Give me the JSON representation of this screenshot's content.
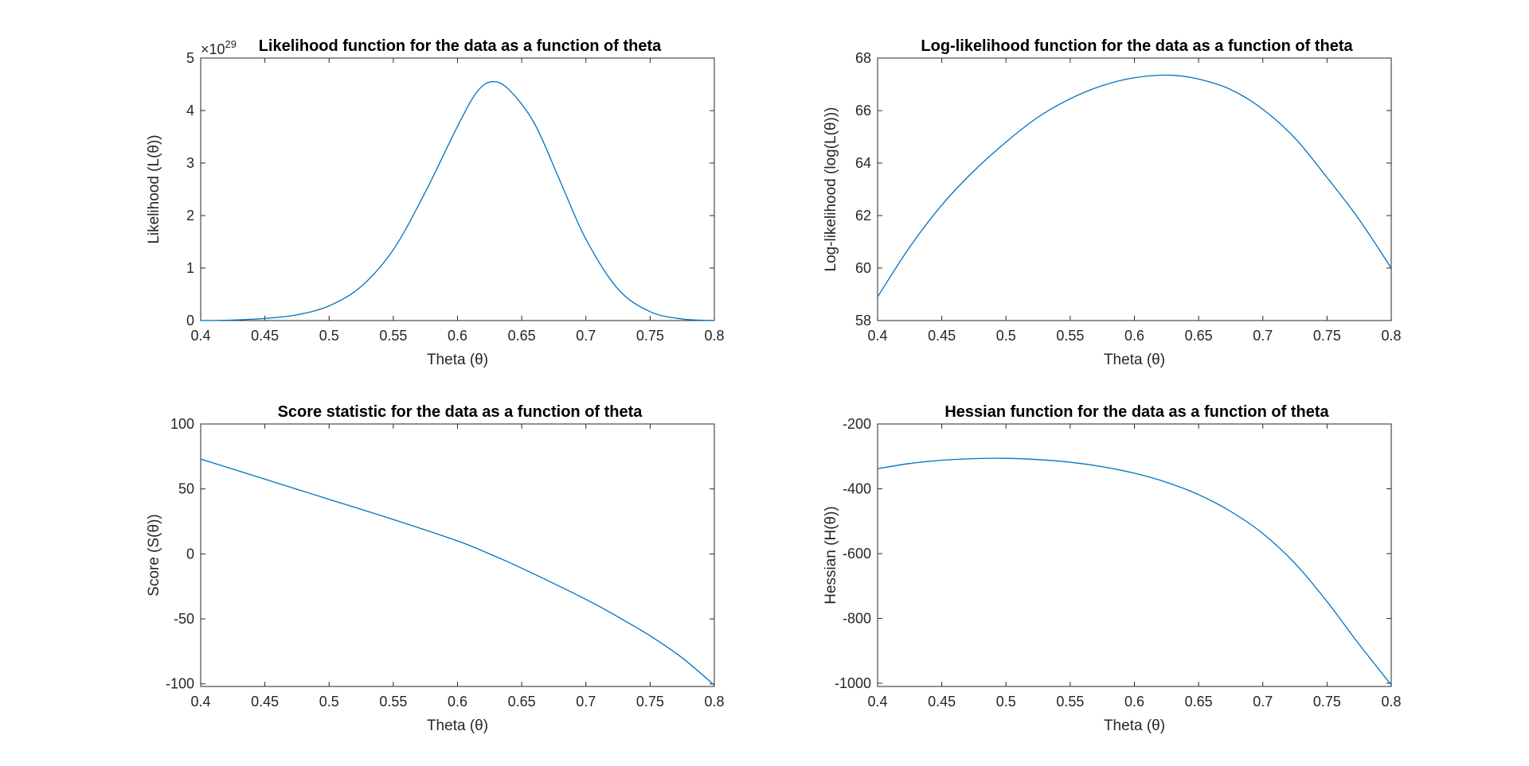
{
  "chart_data": [
    {
      "type": "line",
      "title": "Likelihood function for the data as a function of theta",
      "xlabel": "Theta (θ)",
      "ylabel": "Likelihood (L(θ))",
      "y_exponent_label": "×10",
      "y_exponent_power": "29",
      "xlim": [
        0.4,
        0.8
      ],
      "ylim": [
        0,
        5
      ],
      "xticks": [
        0.4,
        0.45,
        0.5,
        0.55,
        0.6,
        0.65,
        0.7,
        0.75,
        0.8
      ],
      "xtick_labels": [
        "0.4",
        "0.45",
        "0.5",
        "0.55",
        "0.6",
        "0.65",
        "0.7",
        "0.75",
        "0.8"
      ],
      "yticks": [
        0,
        1,
        2,
        3,
        4,
        5
      ],
      "ytick_labels": [
        "0",
        "1",
        "2",
        "3",
        "4",
        "5"
      ],
      "grid": false,
      "series": [
        {
          "color": "#0072BD",
          "x": [
            0.4,
            0.425,
            0.45,
            0.475,
            0.5,
            0.525,
            0.55,
            0.575,
            0.6,
            0.615,
            0.627,
            0.64,
            0.66,
            0.68,
            0.7,
            0.725,
            0.75,
            0.775,
            0.8
          ],
          "y": [
            0.0,
            0.01,
            0.04,
            0.11,
            0.28,
            0.65,
            1.35,
            2.45,
            3.7,
            4.35,
            4.55,
            4.4,
            3.75,
            2.65,
            1.55,
            0.6,
            0.17,
            0.03,
            0.0
          ]
        }
      ]
    },
    {
      "type": "line",
      "title": "Log-likelihood function for the data as a function of theta",
      "xlabel": "Theta (θ)",
      "ylabel": "Log-likelihood (log(L(θ)))",
      "xlim": [
        0.4,
        0.8
      ],
      "ylim": [
        58,
        68
      ],
      "xticks": [
        0.4,
        0.45,
        0.5,
        0.55,
        0.6,
        0.65,
        0.7,
        0.75,
        0.8
      ],
      "xtick_labels": [
        "0.4",
        "0.45",
        "0.5",
        "0.55",
        "0.6",
        "0.65",
        "0.7",
        "0.75",
        "0.8"
      ],
      "yticks": [
        58,
        60,
        62,
        64,
        66,
        68
      ],
      "ytick_labels": [
        "58",
        "60",
        "62",
        "64",
        "66",
        "68"
      ],
      "grid": false,
      "series": [
        {
          "color": "#0072BD",
          "x": [
            0.4,
            0.425,
            0.45,
            0.475,
            0.5,
            0.525,
            0.55,
            0.575,
            0.6,
            0.627,
            0.65,
            0.675,
            0.7,
            0.725,
            0.75,
            0.775,
            0.8
          ],
          "y": [
            58.9,
            60.8,
            62.4,
            63.7,
            64.8,
            65.75,
            66.45,
            66.95,
            67.25,
            67.35,
            67.2,
            66.8,
            66.05,
            64.95,
            63.45,
            61.85,
            60.0
          ]
        }
      ]
    },
    {
      "type": "line",
      "title": "Score statistic for the data as a function of theta",
      "xlabel": "Theta (θ)",
      "ylabel": "Score (S(θ))",
      "xlim": [
        0.4,
        0.8
      ],
      "ylim": [
        -102,
        100
      ],
      "xticks": [
        0.4,
        0.45,
        0.5,
        0.55,
        0.6,
        0.65,
        0.7,
        0.75,
        0.8
      ],
      "xtick_labels": [
        "0.4",
        "0.45",
        "0.5",
        "0.55",
        "0.6",
        "0.65",
        "0.7",
        "0.75",
        "0.8"
      ],
      "yticks": [
        -100,
        -50,
        0,
        50,
        100
      ],
      "ytick_labels": [
        "-100",
        "-50",
        "0",
        "50",
        "100"
      ],
      "grid": false,
      "series": [
        {
          "color": "#0072BD",
          "x": [
            0.4,
            0.45,
            0.5,
            0.55,
            0.6,
            0.625,
            0.65,
            0.7,
            0.725,
            0.75,
            0.775,
            0.8
          ],
          "y": [
            73,
            57.5,
            42,
            26.5,
            10,
            0,
            -11,
            -35,
            -48.5,
            -63,
            -80,
            -101
          ]
        }
      ]
    },
    {
      "type": "line",
      "title": "Hessian function for the data as a function of theta",
      "xlabel": "Theta (θ)",
      "ylabel": "Hessian (H(θ))",
      "xlim": [
        0.4,
        0.8
      ],
      "ylim": [
        -1010,
        -200
      ],
      "xticks": [
        0.4,
        0.45,
        0.5,
        0.55,
        0.6,
        0.65,
        0.7,
        0.75,
        0.8
      ],
      "xtick_labels": [
        "0.4",
        "0.45",
        "0.5",
        "0.55",
        "0.6",
        "0.65",
        "0.7",
        "0.75",
        "0.8"
      ],
      "yticks": [
        -1000,
        -800,
        -600,
        -400,
        -200
      ],
      "ytick_labels": [
        "-1000",
        "-800",
        "-600",
        "-400",
        "-200"
      ],
      "grid": false,
      "series": [
        {
          "color": "#0072BD",
          "x": [
            0.4,
            0.425,
            0.45,
            0.475,
            0.5,
            0.525,
            0.55,
            0.575,
            0.6,
            0.625,
            0.65,
            0.675,
            0.7,
            0.725,
            0.75,
            0.775,
            0.8
          ],
          "y": [
            -338,
            -322,
            -312,
            -307,
            -306,
            -310,
            -318,
            -332,
            -352,
            -380,
            -418,
            -470,
            -538,
            -630,
            -748,
            -880,
            -1005
          ]
        }
      ]
    }
  ]
}
